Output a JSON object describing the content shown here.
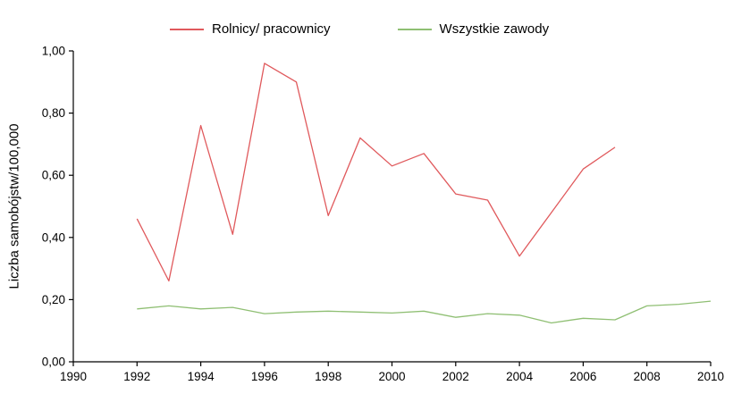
{
  "chart_data": {
    "type": "line",
    "title": "",
    "xlabel": "",
    "ylabel": "Liczba samobójstw/100,000",
    "xlim": [
      1990,
      2010
    ],
    "ylim": [
      0,
      1
    ],
    "xticks": [
      1990,
      1992,
      1994,
      1996,
      1998,
      2000,
      2002,
      2004,
      2006,
      2008,
      2010
    ],
    "yticks": [
      0,
      0.2,
      0.4,
      0.6,
      0.8,
      1.0
    ],
    "ytick_labels": [
      "0,00",
      "0,20",
      "0,40",
      "0,60",
      "0,80",
      "1,00"
    ],
    "grid": false,
    "legend_position": "top",
    "axis_color": "#000000",
    "series": [
      {
        "name": "Rolnicy/ pracownicy",
        "color": "#e0595c",
        "x": [
          1992,
          1993,
          1994,
          1995,
          1996,
          1997,
          1998,
          1999,
          2000,
          2001,
          2002,
          2003,
          2004,
          2005,
          2006,
          2007
        ],
        "values": [
          0.46,
          0.26,
          0.76,
          0.41,
          0.96,
          0.9,
          0.47,
          0.72,
          0.63,
          0.67,
          0.54,
          0.52,
          0.34,
          0.48,
          0.62,
          0.69
        ]
      },
      {
        "name": "Wszystkie zawody",
        "color": "#8fbf73",
        "x": [
          1992,
          1993,
          1994,
          1995,
          1996,
          1997,
          1998,
          1999,
          2000,
          2001,
          2002,
          2003,
          2004,
          2005,
          2006,
          2007,
          2008,
          2009,
          2010
        ],
        "values": [
          0.17,
          0.18,
          0.17,
          0.175,
          0.155,
          0.16,
          0.163,
          0.16,
          0.157,
          0.163,
          0.143,
          0.155,
          0.15,
          0.125,
          0.14,
          0.135,
          0.18,
          0.185,
          0.195
        ]
      }
    ]
  }
}
